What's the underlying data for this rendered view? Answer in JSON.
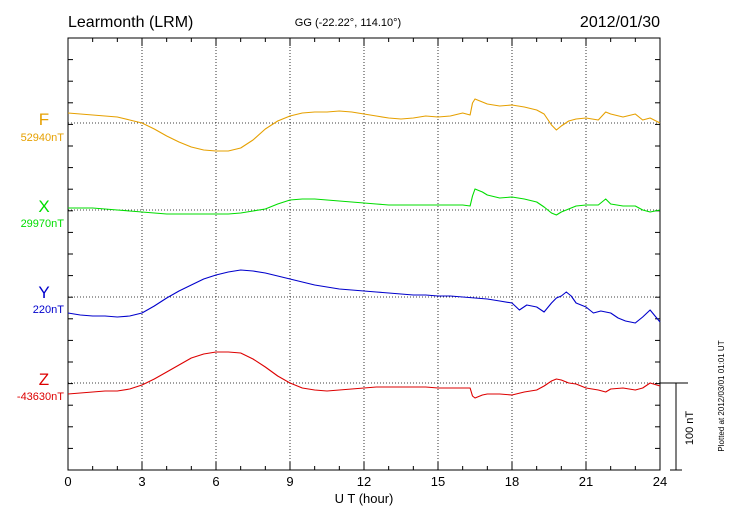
{
  "chart_data": {
    "type": "line",
    "title": "Learmonth (LRM)",
    "subtitle": "GG (-22.22°, 114.10°)",
    "date": "2012/01/30",
    "xlabel": "U T (hour)",
    "xlim": [
      0,
      24
    ],
    "xticks": [
      "0",
      "3",
      "6",
      "9",
      "12",
      "15",
      "18",
      "21",
      "24"
    ],
    "scale_label": "100 nT",
    "plotted_label": "Plotted at 2012/03/01 01:01  UT",
    "grid": true,
    "series": [
      {
        "name": "F",
        "baseline_label": "52940nT",
        "color": "#e6a000",
        "points": [
          [
            0,
            113
          ],
          [
            0.5,
            114
          ],
          [
            1,
            115
          ],
          [
            1.5,
            116
          ],
          [
            2,
            117
          ],
          [
            2.5,
            120
          ],
          [
            3,
            123
          ],
          [
            3.5,
            129
          ],
          [
            4,
            136
          ],
          [
            4.5,
            142
          ],
          [
            5,
            147
          ],
          [
            5.5,
            150
          ],
          [
            6,
            151
          ],
          [
            6.5,
            151
          ],
          [
            7,
            148
          ],
          [
            7.5,
            140
          ],
          [
            8,
            129
          ],
          [
            8.5,
            121
          ],
          [
            9,
            116
          ],
          [
            9.5,
            113
          ],
          [
            10,
            112
          ],
          [
            10.5,
            112
          ],
          [
            11,
            111
          ],
          [
            11.5,
            112
          ],
          [
            12,
            114
          ],
          [
            12.5,
            116
          ],
          [
            13,
            118
          ],
          [
            13.5,
            119
          ],
          [
            14,
            118
          ],
          [
            14.5,
            116
          ],
          [
            15,
            117
          ],
          [
            15.5,
            116
          ],
          [
            16,
            113
          ],
          [
            16.3,
            115
          ],
          [
            16.4,
            103
          ],
          [
            16.5,
            99
          ],
          [
            16.8,
            102
          ],
          [
            17,
            104
          ],
          [
            17.5,
            106
          ],
          [
            18,
            105
          ],
          [
            18.5,
            107
          ],
          [
            19,
            110
          ],
          [
            19.3,
            114
          ],
          [
            19.6,
            125
          ],
          [
            19.8,
            130
          ],
          [
            20,
            126
          ],
          [
            20.3,
            121
          ],
          [
            20.6,
            119
          ],
          [
            21,
            118
          ],
          [
            21.5,
            120
          ],
          [
            21.8,
            112
          ],
          [
            22,
            114
          ],
          [
            22.5,
            117
          ],
          [
            23,
            114
          ],
          [
            23.3,
            120
          ],
          [
            23.6,
            118
          ],
          [
            24,
            123
          ]
        ]
      },
      {
        "name": "X",
        "baseline_label": "29970nT",
        "color": "#00dd00",
        "points": [
          [
            0,
            208
          ],
          [
            0.5,
            208
          ],
          [
            1,
            208
          ],
          [
            1.5,
            209
          ],
          [
            2,
            210
          ],
          [
            2.5,
            211
          ],
          [
            3,
            212
          ],
          [
            3.5,
            213
          ],
          [
            4,
            214
          ],
          [
            4.5,
            214
          ],
          [
            5,
            214
          ],
          [
            5.5,
            214
          ],
          [
            6,
            214
          ],
          [
            6.5,
            214
          ],
          [
            7,
            213
          ],
          [
            7.5,
            211
          ],
          [
            8,
            209
          ],
          [
            8.5,
            204
          ],
          [
            9,
            200
          ],
          [
            9.5,
            199
          ],
          [
            10,
            199
          ],
          [
            10.5,
            200
          ],
          [
            11,
            201
          ],
          [
            11.5,
            202
          ],
          [
            12,
            203
          ],
          [
            12.5,
            204
          ],
          [
            13,
            205
          ],
          [
            13.5,
            205
          ],
          [
            14,
            205
          ],
          [
            14.5,
            205
          ],
          [
            15,
            205
          ],
          [
            15.5,
            205
          ],
          [
            16,
            205
          ],
          [
            16.3,
            206
          ],
          [
            16.4,
            196
          ],
          [
            16.5,
            189
          ],
          [
            16.8,
            192
          ],
          [
            17,
            195
          ],
          [
            17.5,
            198
          ],
          [
            18,
            197
          ],
          [
            18.5,
            199
          ],
          [
            19,
            202
          ],
          [
            19.3,
            207
          ],
          [
            19.6,
            213
          ],
          [
            19.8,
            215
          ],
          [
            20,
            212
          ],
          [
            20.3,
            209
          ],
          [
            20.6,
            206
          ],
          [
            21,
            205
          ],
          [
            21.5,
            205
          ],
          [
            21.8,
            199
          ],
          [
            22,
            204
          ],
          [
            22.5,
            206
          ],
          [
            23,
            206
          ],
          [
            23.3,
            210
          ],
          [
            23.6,
            212
          ],
          [
            24,
            210
          ]
        ]
      },
      {
        "name": "Y",
        "baseline_label": "220nT",
        "color": "#0000cc",
        "points": [
          [
            0,
            313
          ],
          [
            0.5,
            315
          ],
          [
            1,
            316
          ],
          [
            1.5,
            316
          ],
          [
            2,
            317
          ],
          [
            2.5,
            316
          ],
          [
            3,
            313
          ],
          [
            3.5,
            306
          ],
          [
            4,
            298
          ],
          [
            4.5,
            291
          ],
          [
            5,
            285
          ],
          [
            5.5,
            279
          ],
          [
            6,
            275
          ],
          [
            6.5,
            272
          ],
          [
            7,
            270
          ],
          [
            7.5,
            271
          ],
          [
            8,
            273
          ],
          [
            8.5,
            276
          ],
          [
            9,
            279
          ],
          [
            9.5,
            282
          ],
          [
            10,
            285
          ],
          [
            10.5,
            287
          ],
          [
            11,
            289
          ],
          [
            11.5,
            290
          ],
          [
            12,
            291
          ],
          [
            12.5,
            292
          ],
          [
            13,
            293
          ],
          [
            13.5,
            294
          ],
          [
            14,
            295
          ],
          [
            14.5,
            295
          ],
          [
            15,
            296
          ],
          [
            15.5,
            296
          ],
          [
            16,
            297
          ],
          [
            16.5,
            298
          ],
          [
            17,
            299
          ],
          [
            17.5,
            301
          ],
          [
            18,
            303
          ],
          [
            18.3,
            310
          ],
          [
            18.6,
            305
          ],
          [
            19,
            307
          ],
          [
            19.3,
            312
          ],
          [
            19.6,
            303
          ],
          [
            19.8,
            298
          ],
          [
            20,
            296
          ],
          [
            20.2,
            292
          ],
          [
            20.4,
            296
          ],
          [
            20.6,
            303
          ],
          [
            21,
            307
          ],
          [
            21.3,
            313
          ],
          [
            21.6,
            311
          ],
          [
            22,
            313
          ],
          [
            22.3,
            318
          ],
          [
            22.6,
            321
          ],
          [
            23,
            323
          ],
          [
            23.3,
            317
          ],
          [
            23.6,
            310
          ],
          [
            24,
            322
          ]
        ]
      },
      {
        "name": "Z",
        "baseline_label": "-43630nT",
        "color": "#dd0000",
        "points": [
          [
            0,
            394
          ],
          [
            0.5,
            393
          ],
          [
            1,
            392
          ],
          [
            1.5,
            391
          ],
          [
            2,
            391
          ],
          [
            2.5,
            389
          ],
          [
            3,
            385
          ],
          [
            3.5,
            379
          ],
          [
            4,
            372
          ],
          [
            4.5,
            365
          ],
          [
            5,
            358
          ],
          [
            5.5,
            354
          ],
          [
            6,
            352
          ],
          [
            6.5,
            352
          ],
          [
            7,
            353
          ],
          [
            7.5,
            359
          ],
          [
            8,
            367
          ],
          [
            8.5,
            376
          ],
          [
            9,
            383
          ],
          [
            9.5,
            388
          ],
          [
            10,
            390
          ],
          [
            10.5,
            391
          ],
          [
            11,
            390
          ],
          [
            11.5,
            389
          ],
          [
            12,
            388
          ],
          [
            12.5,
            387
          ],
          [
            13,
            387
          ],
          [
            13.5,
            387
          ],
          [
            14,
            387
          ],
          [
            14.5,
            387
          ],
          [
            15,
            388
          ],
          [
            15.5,
            388
          ],
          [
            16,
            388
          ],
          [
            16.3,
            388
          ],
          [
            16.4,
            396
          ],
          [
            16.5,
            398
          ],
          [
            16.8,
            395
          ],
          [
            17,
            394
          ],
          [
            17.5,
            394
          ],
          [
            18,
            395
          ],
          [
            18.5,
            392
          ],
          [
            19,
            390
          ],
          [
            19.3,
            386
          ],
          [
            19.6,
            381
          ],
          [
            19.8,
            379
          ],
          [
            20,
            380
          ],
          [
            20.3,
            383
          ],
          [
            20.6,
            384
          ],
          [
            21,
            388
          ],
          [
            21.5,
            390
          ],
          [
            21.8,
            392
          ],
          [
            22,
            389
          ],
          [
            22.5,
            388
          ],
          [
            23,
            390
          ],
          [
            23.3,
            388
          ],
          [
            23.6,
            383
          ],
          [
            24,
            386
          ]
        ]
      }
    ]
  }
}
